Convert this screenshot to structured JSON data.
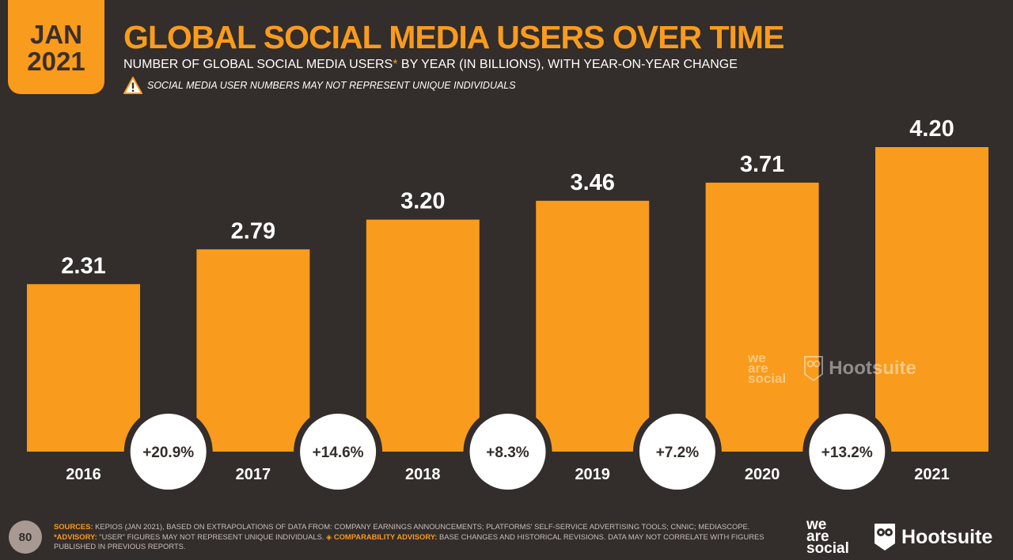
{
  "badge": {
    "month": "JAN",
    "year": "2021"
  },
  "header": {
    "title": "GLOBAL SOCIAL MEDIA USERS OVER TIME",
    "subtitle_main": "NUMBER OF GLOBAL SOCIAL MEDIA USERS",
    "subtitle_star": "*",
    "subtitle_rest": " BY YEAR (IN BILLIONS), WITH YEAR-ON-YEAR CHANGE",
    "warning": "SOCIAL MEDIA USER NUMBERS MAY NOT REPRESENT UNIQUE INDIVIDUALS"
  },
  "chart_data": {
    "type": "bar",
    "categories": [
      "2016",
      "2017",
      "2018",
      "2019",
      "2020",
      "2021"
    ],
    "values": [
      2.31,
      2.79,
      3.2,
      3.46,
      3.71,
      4.2
    ],
    "value_labels": [
      "2.31",
      "2.79",
      "3.20",
      "3.46",
      "3.71",
      "4.20"
    ],
    "yoy_change": [
      "+20.9%",
      "+14.6%",
      "+8.3%",
      "+7.2%",
      "+13.2%"
    ],
    "ylim": [
      0,
      4.2
    ],
    "bar_color": "#f99b1c",
    "grid": false
  },
  "watermark": {
    "wearesocial": [
      "we",
      "are",
      "social"
    ],
    "hootsuite": "Hootsuite"
  },
  "footer": {
    "page_number": "80",
    "sources_label": "SOURCES:",
    "sources_text": " KEPIOS (JAN 2021), BASED ON EXTRAPOLATIONS OF DATA FROM: COMPANY EARNINGS ANNOUNCEMENTS; PLATFORMS' SELF-SERVICE ADVERTISING TOOLS; CNNIC; MEDIASCOPE.",
    "advisory_label": "*ADVISORY:",
    "advisory_text": " \"USER\" FIGURES MAY NOT REPRESENT UNIQUE INDIVIDUALS.",
    "comparability_label": " ◈ COMPARABILITY ADVISORY:",
    "comparability_text": " BASE CHANGES AND HISTORICAL REVISIONS. DATA MAY NOT CORRELATE WITH FIGURES PUBLISHED IN PREVIOUS REPORTS."
  },
  "logos": {
    "wearesocial": [
      "we",
      "are",
      "social"
    ],
    "hootsuite": "Hootsuite"
  },
  "colors": {
    "accent": "#f99b1c",
    "background": "#332d2b",
    "text": "#ffffff"
  }
}
